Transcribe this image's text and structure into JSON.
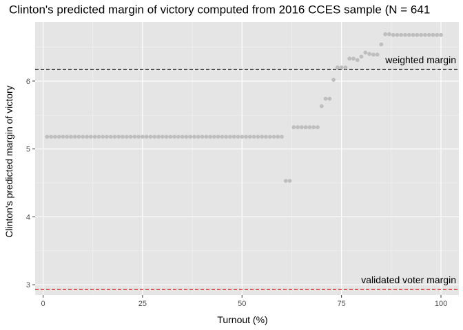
{
  "chart_data": {
    "type": "scatter",
    "title": "Clinton's predicted margin of victory computed from 2016 CCES sample (N = 641",
    "xlabel": "Turnout (%)",
    "ylabel": "Clinton's predicted margin of victory",
    "xlim": [
      -2,
      104.5
    ],
    "ylim": [
      2.85,
      6.87
    ],
    "x_ticks": [
      0,
      25,
      50,
      75,
      100
    ],
    "y_ticks": [
      3,
      4,
      5,
      6
    ],
    "grid": true,
    "background": "#e5e5e5",
    "point_color": "#bebebe",
    "series": [
      {
        "x": [
          1,
          2,
          3,
          4,
          5,
          6,
          7,
          8,
          9,
          10,
          11,
          12,
          13,
          14,
          15,
          16,
          17,
          18,
          19,
          20,
          21,
          22,
          23,
          24,
          25,
          26,
          27,
          28,
          29,
          30,
          31,
          32,
          33,
          34,
          35,
          36,
          37,
          38,
          39,
          40,
          41,
          42,
          43,
          44,
          45,
          46,
          47,
          48,
          49,
          50,
          51,
          52,
          53,
          54,
          55,
          56,
          57,
          58,
          59,
          60,
          61,
          62,
          63,
          64,
          65,
          66,
          67,
          68,
          69,
          70,
          71,
          72,
          73,
          74,
          75,
          76,
          77,
          78,
          79,
          80,
          81,
          82,
          83,
          84,
          85,
          86,
          87,
          88,
          89,
          90,
          91,
          92,
          93,
          94,
          95,
          96,
          97,
          98,
          99,
          100
        ],
        "y": [
          5.18,
          5.18,
          5.18,
          5.18,
          5.18,
          5.18,
          5.18,
          5.18,
          5.18,
          5.18,
          5.18,
          5.18,
          5.18,
          5.18,
          5.18,
          5.18,
          5.18,
          5.18,
          5.18,
          5.18,
          5.18,
          5.18,
          5.18,
          5.18,
          5.18,
          5.18,
          5.18,
          5.18,
          5.18,
          5.18,
          5.18,
          5.18,
          5.18,
          5.18,
          5.18,
          5.18,
          5.18,
          5.18,
          5.18,
          5.18,
          5.18,
          5.18,
          5.18,
          5.18,
          5.18,
          5.18,
          5.18,
          5.18,
          5.18,
          5.18,
          5.18,
          5.18,
          5.18,
          5.18,
          5.18,
          5.18,
          5.18,
          5.18,
          5.18,
          5.18,
          4.53,
          4.53,
          5.32,
          5.32,
          5.32,
          5.32,
          5.32,
          5.32,
          5.32,
          5.63,
          5.74,
          5.74,
          6.02,
          6.2,
          6.2,
          6.2,
          6.33,
          6.33,
          6.31,
          6.36,
          6.42,
          6.4,
          6.39,
          6.39,
          6.54,
          6.69,
          6.69,
          6.68,
          6.68,
          6.68,
          6.68,
          6.68,
          6.68,
          6.68,
          6.68,
          6.68,
          6.68,
          6.68,
          6.68,
          6.68
        ]
      }
    ],
    "reference_lines": [
      {
        "y": 6.17,
        "label": "weighted margin",
        "color": "#000000"
      },
      {
        "y": 2.93,
        "label": "validated voter margin",
        "color": "#ff0000"
      }
    ]
  }
}
